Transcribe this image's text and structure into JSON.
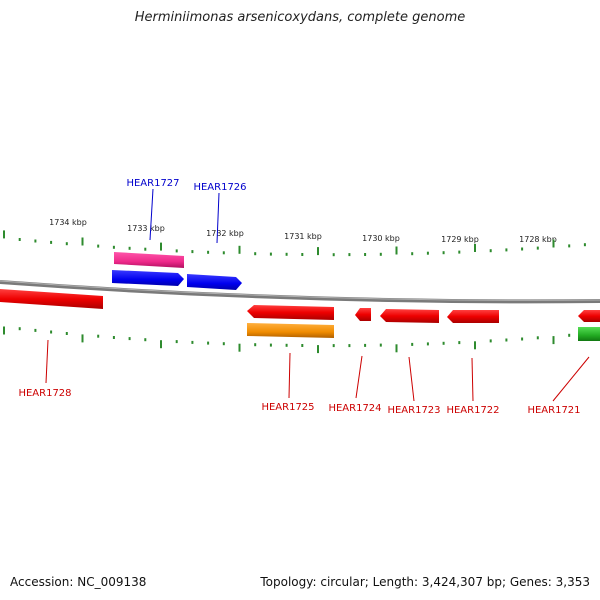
{
  "title": "Herminiimonas arsenicoxydans, complete genome",
  "footer": {
    "accession": "Accession: NC_009138",
    "summary": "Topology: circular; Length: 3,424,307 bp; Genes: 3,353"
  },
  "kbp_labels": [
    "1734 kbp",
    "1733 kbp",
    "1732 kbp",
    "1731 kbp",
    "1730 kbp",
    "1729 kbp",
    "1728 kbp"
  ],
  "genes_top": [
    {
      "label": "HEAR1727",
      "color": "#0000cc"
    },
    {
      "label": "HEAR1726",
      "color": "#0000cc"
    }
  ],
  "genes_bottom": [
    {
      "label": "HEAR1728",
      "color": "#cc0000"
    },
    {
      "label": "HEAR1725",
      "color": "#cc0000"
    },
    {
      "label": "HEAR1724",
      "color": "#cc0000"
    },
    {
      "label": "HEAR1723",
      "color": "#cc0000"
    },
    {
      "label": "HEAR1722",
      "color": "#cc0000"
    },
    {
      "label": "HEAR1721",
      "color": "#cc0000"
    }
  ],
  "colors": {
    "backbone": "#808080",
    "tick": "#2e8b2e",
    "forward_gene": "#0000ee",
    "reverse_gene": "#ee0000",
    "pink_feature": "#ee2a8a",
    "orange_feature": "#f08c00",
    "green_feature": "#22aa22"
  }
}
